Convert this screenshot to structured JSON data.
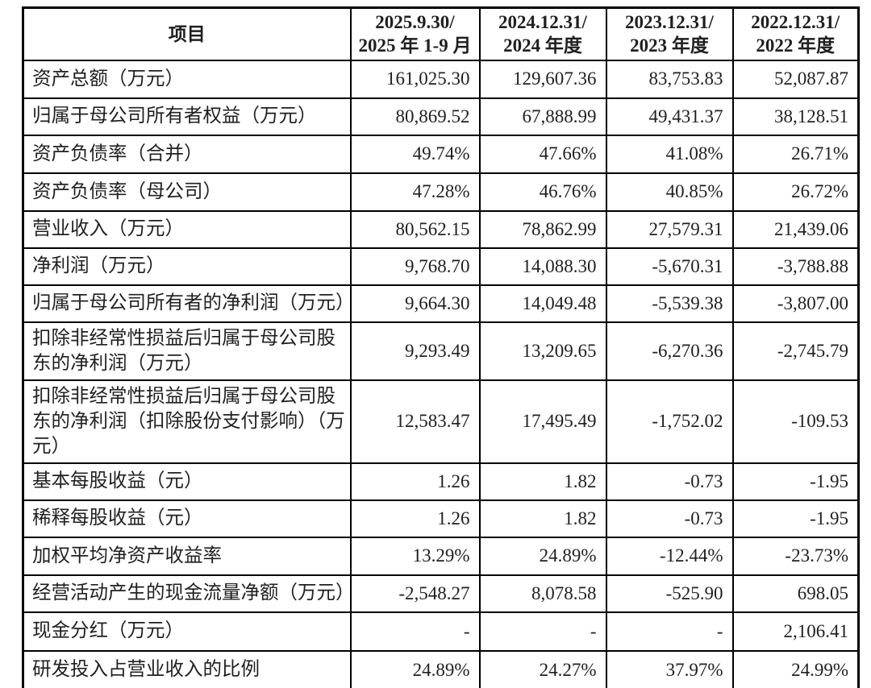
{
  "page": {
    "background_color": "#ffffff",
    "border_color": "#000000",
    "text_color": "#1f1f1f"
  },
  "table": {
    "header": {
      "item_label": "项目",
      "periods": [
        {
          "line1": "2025.9.30/",
          "line2": "2025 年 1-9 月"
        },
        {
          "line1": "2024.12.31/",
          "line2": "2024 年度"
        },
        {
          "line1": "2023.12.31/",
          "line2": "2023 年度"
        },
        {
          "line1": "2022.12.31/",
          "line2": "2022 年度"
        }
      ]
    },
    "rows": [
      {
        "label": "资产总额（万元）",
        "values": [
          "161,025.30",
          "129,607.36",
          "83,753.83",
          "52,087.87"
        ]
      },
      {
        "label": "归属于母公司所有者权益（万元）",
        "values": [
          "80,869.52",
          "67,888.99",
          "49,431.37",
          "38,128.51"
        ]
      },
      {
        "label": "资产负债率（合并）",
        "values": [
          "49.74%",
          "47.66%",
          "41.08%",
          "26.71%"
        ]
      },
      {
        "label": "资产负债率（母公司）",
        "values": [
          "47.28%",
          "46.76%",
          "40.85%",
          "26.72%"
        ]
      },
      {
        "label": "营业收入（万元）",
        "values": [
          "80,562.15",
          "78,862.99",
          "27,579.31",
          "21,439.06"
        ]
      },
      {
        "label": "净利润（万元）",
        "values": [
          "9,768.70",
          "14,088.30",
          "-5,670.31",
          "-3,788.88"
        ]
      },
      {
        "label": "归属于母公司所有者的净利润（万元）",
        "values": [
          "9,664.30",
          "14,049.48",
          "-5,539.38",
          "-3,807.00"
        ]
      },
      {
        "label": "扣除非经常性损益后归属于母公司股东的净利润（万元）",
        "values": [
          "9,293.49",
          "13,209.65",
          "-6,270.36",
          "-2,745.79"
        ]
      },
      {
        "label": "扣除非经常性损益后归属于母公司股东的净利润（扣除股份支付影响）（万元）",
        "values": [
          "12,583.47",
          "17,495.49",
          "-1,752.02",
          "-109.53"
        ]
      },
      {
        "label": "基本每股收益（元）",
        "values": [
          "1.26",
          "1.82",
          "-0.73",
          "-1.95"
        ]
      },
      {
        "label": "稀释每股收益（元）",
        "values": [
          "1.26",
          "1.82",
          "-0.73",
          "-1.95"
        ]
      },
      {
        "label": "加权平均净资产收益率",
        "values": [
          "13.29%",
          "24.89%",
          "-12.44%",
          "-23.73%"
        ]
      },
      {
        "label": "经营活动产生的现金流量净额（万元）",
        "values": [
          "-2,548.27",
          "8,078.58",
          "-525.90",
          "698.05"
        ]
      },
      {
        "label": "现金分红（万元）",
        "values": [
          "-",
          "-",
          "-",
          "2,106.41"
        ]
      },
      {
        "label": "研发投入占营业收入的比例",
        "values": [
          "24.89%",
          "24.27%",
          "37.97%",
          "24.99%"
        ]
      }
    ]
  }
}
